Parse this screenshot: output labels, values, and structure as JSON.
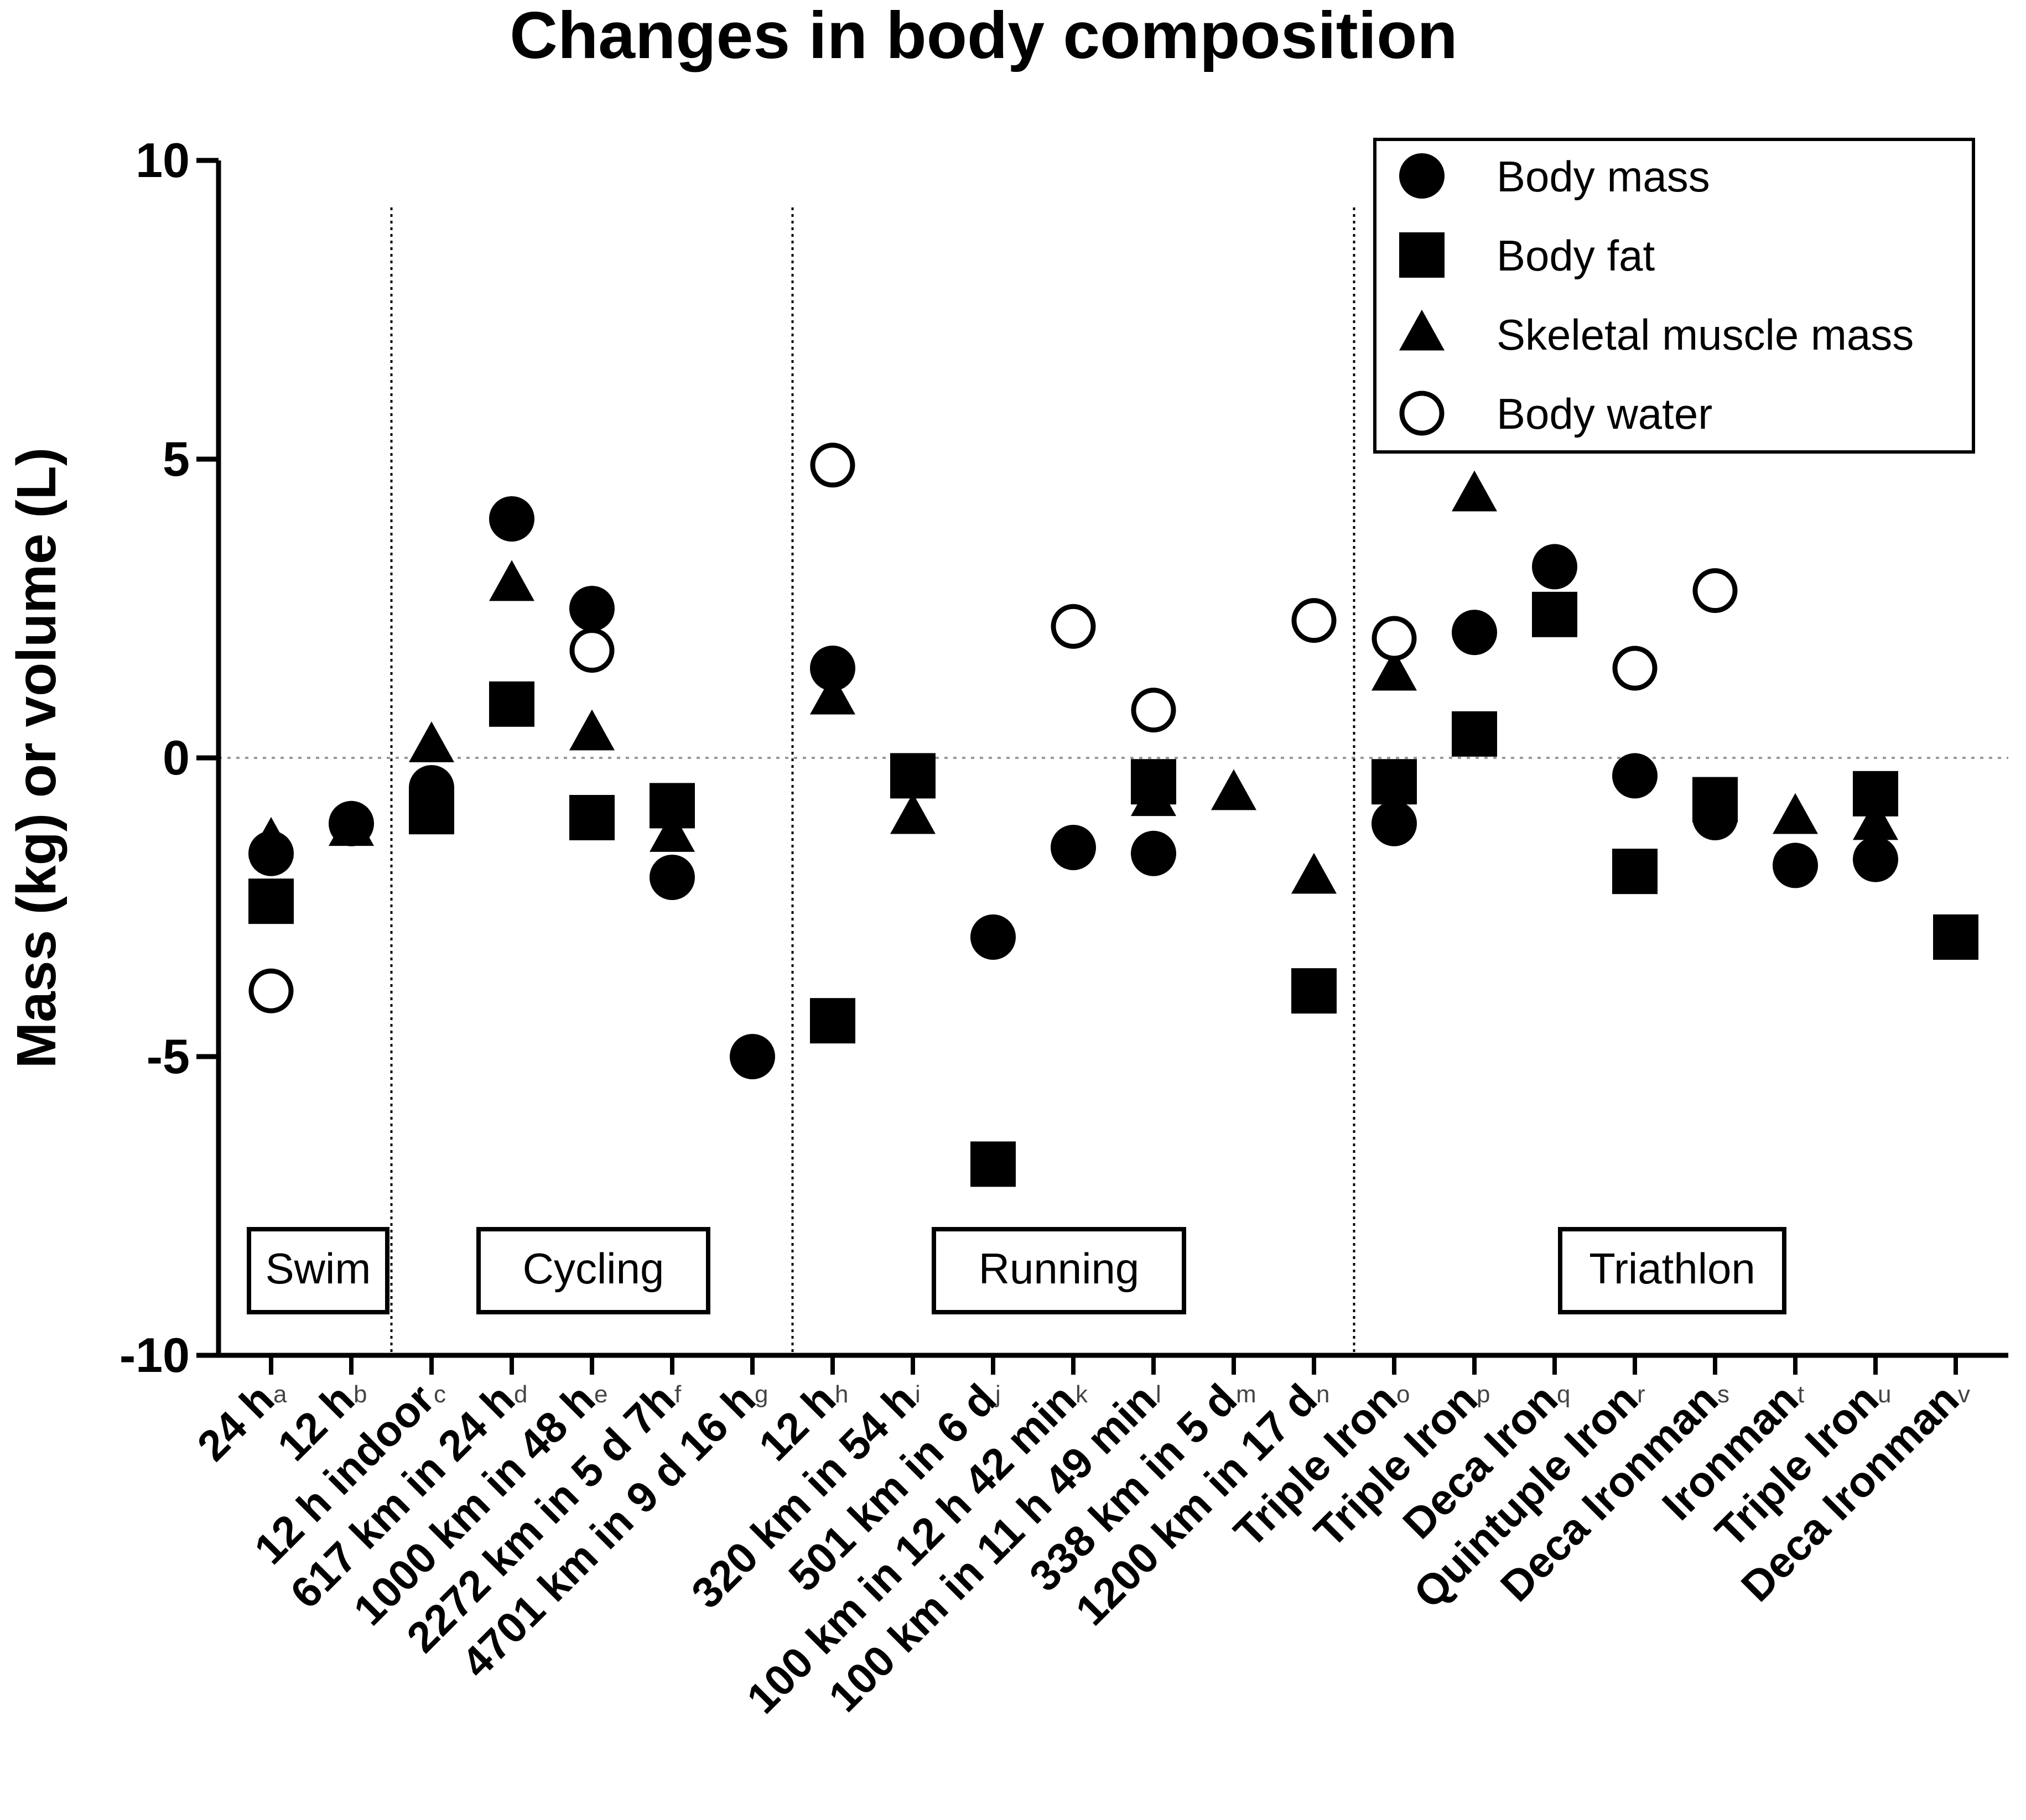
{
  "chart_data": {
    "type": "scatter",
    "title": "Changes in body composition",
    "xlabel": "",
    "ylabel": "Mass (kg) or volume (L)",
    "ylim": [
      -10,
      10
    ],
    "yticks": [
      "10",
      "5",
      "0",
      "-5",
      "-10"
    ],
    "grid": false,
    "zero_line": true,
    "legend_position": "top-right",
    "categories": [
      {
        "label": "24 h",
        "sup": "a"
      },
      {
        "label": "12 h",
        "sup": "b"
      },
      {
        "label": "12 h indoor",
        "sup": "c"
      },
      {
        "label": "617 km in 24 h",
        "sup": "d"
      },
      {
        "label": "1000 km in 48 h",
        "sup": "e"
      },
      {
        "label": "2272 km in 5 d 7h",
        "sup": "f"
      },
      {
        "label": "4701 km in 9 d 16 h",
        "sup": "g"
      },
      {
        "label": "12 h",
        "sup": "h"
      },
      {
        "label": "320 km in 54 h",
        "sup": "i"
      },
      {
        "label": "501 km in 6 d",
        "sup": "j"
      },
      {
        "label": "100 km in 12 h 42 min",
        "sup": "k"
      },
      {
        "label": "100 km in 11 h 49 min",
        "sup": "l"
      },
      {
        "label": "338 km in 5 d",
        "sup": "m"
      },
      {
        "label": "1200 km in 17 d",
        "sup": "n"
      },
      {
        "label": "Triple Iron",
        "sup": "o"
      },
      {
        "label": "Triple Iron",
        "sup": "p"
      },
      {
        "label": "Deca Iron",
        "sup": "q"
      },
      {
        "label": "Quintuple Iron",
        "sup": "r"
      },
      {
        "label": "Deca Ironman",
        "sup": "s"
      },
      {
        "label": "Ironman",
        "sup": "t"
      },
      {
        "label": "Triple Iron",
        "sup": "u"
      },
      {
        "label": "Deca Ironman",
        "sup": "v"
      }
    ],
    "series": [
      {
        "name": "Body mass",
        "marker": "circle-filled",
        "values": [
          -1.6,
          -1.1,
          -0.5,
          4.0,
          2.5,
          -2.0,
          -5.0,
          1.5,
          null,
          -3.0,
          -1.5,
          -1.6,
          null,
          null,
          -1.1,
          2.1,
          3.2,
          -0.3,
          -1.0,
          -1.8,
          -1.7,
          null
        ]
      },
      {
        "name": "Body fat",
        "marker": "square-filled",
        "values": [
          -2.4,
          null,
          -0.9,
          0.9,
          -1.0,
          -0.8,
          null,
          -4.4,
          -0.3,
          -6.8,
          null,
          -0.4,
          null,
          -3.9,
          -0.4,
          0.4,
          2.4,
          -1.9,
          -0.7,
          null,
          -0.6,
          -3.0
        ]
      },
      {
        "name": "Skeletal muscle mass",
        "marker": "triangle-filled",
        "values": [
          -1.4,
          -1.2,
          0.2,
          2.9,
          0.4,
          -1.3,
          null,
          1.0,
          -1.0,
          null,
          null,
          -0.7,
          -0.6,
          -2.0,
          1.4,
          4.4,
          null,
          null,
          null,
          -1.0,
          -1.1,
          null
        ]
      },
      {
        "name": "Body water",
        "marker": "circle-open",
        "values": [
          -3.9,
          null,
          null,
          null,
          1.8,
          null,
          null,
          4.9,
          null,
          null,
          2.2,
          0.8,
          null,
          2.3,
          2.0,
          null,
          null,
          1.5,
          2.8,
          null,
          null,
          null
        ]
      }
    ],
    "groups": [
      {
        "label": "Swim",
        "from": 0,
        "to": 1
      },
      {
        "label": "Cycling",
        "from": 2,
        "to": 6
      },
      {
        "label": "Running",
        "from": 7,
        "to": 13
      },
      {
        "label": "Triathlon",
        "from": 14,
        "to": 21
      }
    ]
  }
}
